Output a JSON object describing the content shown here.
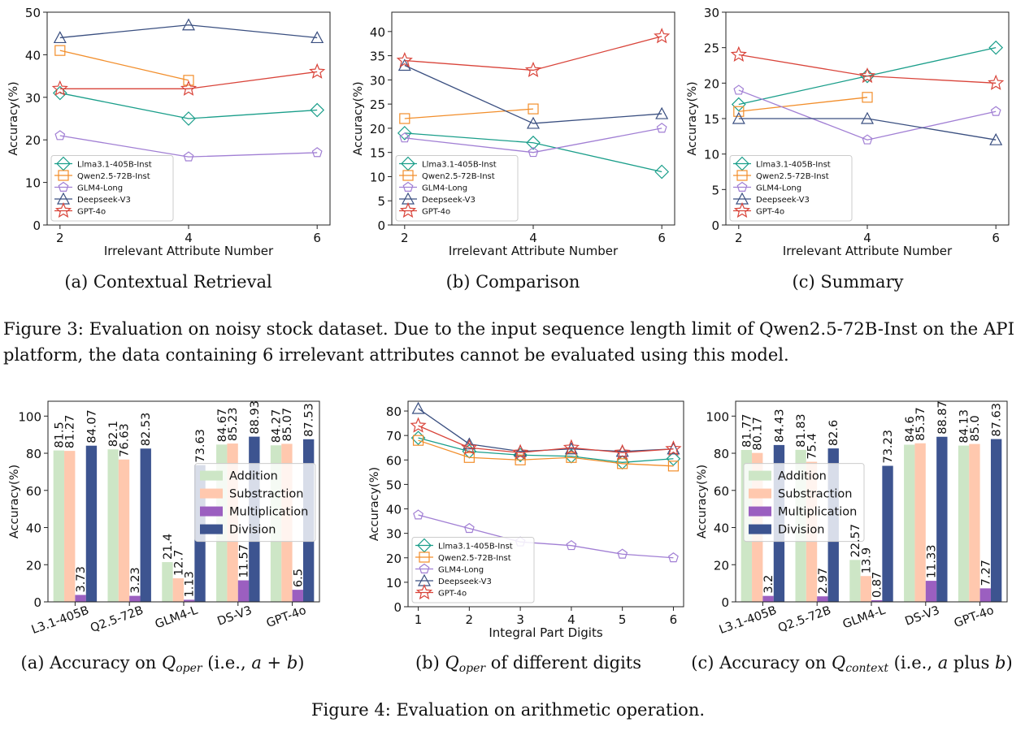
{
  "figure3": {
    "caption": "Figure 3: Evaluation on noisy stock dataset. Due to the input sequence length limit of Qwen2.5-72B-Inst on the API platform, the data containing 6 irrelevant attributes cannot be evaluated using this model.",
    "caption_line1": "Figure 3: Evaluation on noisy stock dataset. Due to the input sequence length limit of Qwen2.5-72B-Inst on the API",
    "caption_line2": "platform, the data containing 6 irrelevant attributes cannot be evaluated using this model.",
    "subcaptions": [
      "(a) Contextual Retrieval",
      "(b) Comparison",
      "(c) Summary"
    ]
  },
  "figure4": {
    "caption": "Figure 4: Evaluation on arithmetic operation.",
    "subcaptions": [
      "(a) Accuracy on Q_oper (i.e., a + b)",
      "(b) Q_oper of different digits",
      "(c) Accuracy on Q_context (i.e., a plus b)"
    ]
  },
  "colors": {
    "llama": "#1a9e8a",
    "qwen": "#f28e2b",
    "glm": "#a17fd4",
    "deepseek": "#3a4f80",
    "gpt": "#d9443a",
    "addition": "#cde6c6",
    "substraction": "#ffc8ae",
    "multiplication": "#9b5fc0",
    "division": "#3d5490"
  },
  "chart_data": [
    {
      "id": "fig3a",
      "type": "line",
      "xlabel": "Irrelevant Attribute Number",
      "ylabel": "Accuracy(%)",
      "x": [
        2,
        4,
        6
      ],
      "xlim": [
        1.8,
        6.2
      ],
      "ylim": [
        0,
        50
      ],
      "yticks": [
        0,
        10,
        20,
        30,
        40,
        50
      ],
      "legend": "lower-left",
      "series": [
        {
          "name": "Llma3.1-405B-Inst",
          "marker": "diamond",
          "color": "#1a9e8a",
          "values": [
            31,
            25,
            27
          ]
        },
        {
          "name": "Qwen2.5-72B-Inst",
          "marker": "square",
          "color": "#f28e2b",
          "values": [
            41,
            34,
            null
          ]
        },
        {
          "name": "GLM4-Long",
          "marker": "pentagon",
          "color": "#a17fd4",
          "values": [
            21,
            16,
            17
          ]
        },
        {
          "name": "Deepseek-V3",
          "marker": "triangle",
          "color": "#3a4f80",
          "values": [
            44,
            47,
            44
          ]
        },
        {
          "name": "GPT-4o",
          "marker": "star",
          "color": "#d9443a",
          "values": [
            32,
            32,
            36
          ]
        }
      ]
    },
    {
      "id": "fig3b",
      "type": "line",
      "xlabel": "Irrelevant Attribute Number",
      "ylabel": "Accuracy(%)",
      "x": [
        2,
        4,
        6
      ],
      "xlim": [
        1.8,
        6.2
      ],
      "ylim": [
        0,
        44
      ],
      "yticks": [
        0,
        5,
        10,
        15,
        20,
        25,
        30,
        35,
        40
      ],
      "legend": "lower-left",
      "series": [
        {
          "name": "Llma3.1-405B-Inst",
          "marker": "diamond",
          "color": "#1a9e8a",
          "values": [
            19,
            17,
            11
          ]
        },
        {
          "name": "Qwen2.5-72B-Inst",
          "marker": "square",
          "color": "#f28e2b",
          "values": [
            22,
            24,
            null
          ]
        },
        {
          "name": "GLM4-Long",
          "marker": "pentagon",
          "color": "#a17fd4",
          "values": [
            18,
            15,
            20
          ]
        },
        {
          "name": "Deepseek-V3",
          "marker": "triangle",
          "color": "#3a4f80",
          "values": [
            33,
            21,
            23
          ]
        },
        {
          "name": "GPT-4o",
          "marker": "star",
          "color": "#d9443a",
          "values": [
            34,
            32,
            39
          ]
        }
      ]
    },
    {
      "id": "fig3c",
      "type": "line",
      "xlabel": "Irrelevant Attribute Number",
      "ylabel": "Accuracy(%)",
      "x": [
        2,
        4,
        6
      ],
      "xlim": [
        1.8,
        6.2
      ],
      "ylim": [
        0,
        30
      ],
      "yticks": [
        0,
        5,
        10,
        15,
        20,
        25,
        30
      ],
      "legend": "lower-left",
      "series": [
        {
          "name": "Llma3.1-405B-Inst",
          "marker": "diamond",
          "color": "#1a9e8a",
          "values": [
            17,
            21,
            25
          ]
        },
        {
          "name": "Qwen2.5-72B-Inst",
          "marker": "square",
          "color": "#f28e2b",
          "values": [
            16,
            18,
            null
          ]
        },
        {
          "name": "GLM4-Long",
          "marker": "pentagon",
          "color": "#a17fd4",
          "values": [
            19,
            12,
            16
          ]
        },
        {
          "name": "Deepseek-V3",
          "marker": "triangle",
          "color": "#3a4f80",
          "values": [
            15,
            15,
            12
          ]
        },
        {
          "name": "GPT-4o",
          "marker": "star",
          "color": "#d9443a",
          "values": [
            24,
            21,
            20
          ]
        }
      ]
    },
    {
      "id": "fig4a",
      "type": "bar",
      "ylabel": "Accuracy(%)",
      "categories": [
        "L3.1-405B",
        "Q2.5-72B",
        "GLM4-L",
        "DS-V3",
        "GPT-4o"
      ],
      "ylim": [
        0,
        108
      ],
      "yticks": [
        0,
        20,
        40,
        60,
        80,
        100
      ],
      "legend": "center-right",
      "series": [
        {
          "name": "Addition",
          "color": "#cde6c6",
          "values": [
            81.5,
            82.1,
            21.4,
            84.67,
            84.27
          ],
          "labels": [
            "81.5",
            "82.1",
            "21.4",
            "84.67",
            "84.27"
          ]
        },
        {
          "name": "Substraction",
          "color": "#ffc8ae",
          "values": [
            81.27,
            76.63,
            12.7,
            85.23,
            85.07
          ],
          "labels": [
            "81.27",
            "76.63",
            "12.7",
            "85.23",
            "85.07"
          ]
        },
        {
          "name": "Multiplication",
          "color": "#9b5fc0",
          "values": [
            3.73,
            3.23,
            1.13,
            11.57,
            6.5
          ],
          "labels": [
            "3.73",
            "3.23",
            "1.13",
            "11.57",
            "6.5"
          ]
        },
        {
          "name": "Division",
          "color": "#3d5490",
          "values": [
            84.07,
            82.53,
            73.63,
            88.93,
            87.53
          ],
          "labels": [
            "84.07",
            "82.53",
            "73.63",
            "88.93",
            "87.53"
          ]
        }
      ]
    },
    {
      "id": "fig4b",
      "type": "line",
      "xlabel": "Integral Part Digits",
      "ylabel": "Accuracy(%)",
      "x": [
        1,
        2,
        3,
        4,
        5,
        6
      ],
      "xlim": [
        0.8,
        6.2
      ],
      "ylim": [
        0,
        84
      ],
      "yticks": [
        0,
        10,
        20,
        30,
        40,
        50,
        60,
        70,
        80
      ],
      "legend": "lower-left",
      "series": [
        {
          "name": "Llma3.1-405B-Inst",
          "marker": "diamond",
          "color": "#1a9e8a",
          "values": [
            69,
            63.5,
            62,
            61.5,
            59,
            60.5
          ]
        },
        {
          "name": "Qwen2.5-72B-Inst",
          "marker": "square",
          "color": "#f28e2b",
          "values": [
            68,
            61,
            60,
            61,
            58.5,
            57.5
          ]
        },
        {
          "name": "GLM4-Long",
          "marker": "pentagon",
          "color": "#a17fd4",
          "values": [
            37.5,
            32,
            26.5,
            25,
            21.5,
            20
          ]
        },
        {
          "name": "Deepseek-V3",
          "marker": "triangle",
          "color": "#3a4f80",
          "values": [
            81,
            66.5,
            63.5,
            64.5,
            63.5,
            64.5
          ]
        },
        {
          "name": "GPT-4o",
          "marker": "star",
          "color": "#d9443a",
          "values": [
            74,
            65,
            63,
            65,
            63,
            64.5
          ]
        }
      ]
    },
    {
      "id": "fig4c",
      "type": "bar",
      "ylabel": "Accuracy(%)",
      "categories": [
        "L3.1-405B",
        "Q2.5-72B",
        "GLM4-L",
        "DS-V3",
        "GPT-4o"
      ],
      "ylim": [
        0,
        108
      ],
      "yticks": [
        0,
        20,
        40,
        60,
        80,
        100
      ],
      "legend": "center-left",
      "series": [
        {
          "name": "Addition",
          "color": "#cde6c6",
          "values": [
            81.77,
            81.83,
            22.57,
            84.6,
            84.13
          ],
          "labels": [
            "81.77",
            "81.83",
            "22.57",
            "84.6",
            "84.13"
          ]
        },
        {
          "name": "Substraction",
          "color": "#ffc8ae",
          "values": [
            80.17,
            75.4,
            13.9,
            85.37,
            85.0
          ],
          "labels": [
            "80.17",
            "75.4",
            "13.9",
            "85.37",
            "85.0"
          ]
        },
        {
          "name": "Multiplication",
          "color": "#9b5fc0",
          "values": [
            3.2,
            2.97,
            0.87,
            11.33,
            7.27
          ],
          "labels": [
            "3.2",
            "2.97",
            "0.87",
            "11.33",
            "7.27"
          ]
        },
        {
          "name": "Division",
          "color": "#3d5490",
          "values": [
            84.43,
            82.6,
            73.23,
            88.87,
            87.63
          ],
          "labels": [
            "84.43",
            "82.6",
            "73.23",
            "88.87",
            "87.63"
          ]
        }
      ]
    }
  ]
}
